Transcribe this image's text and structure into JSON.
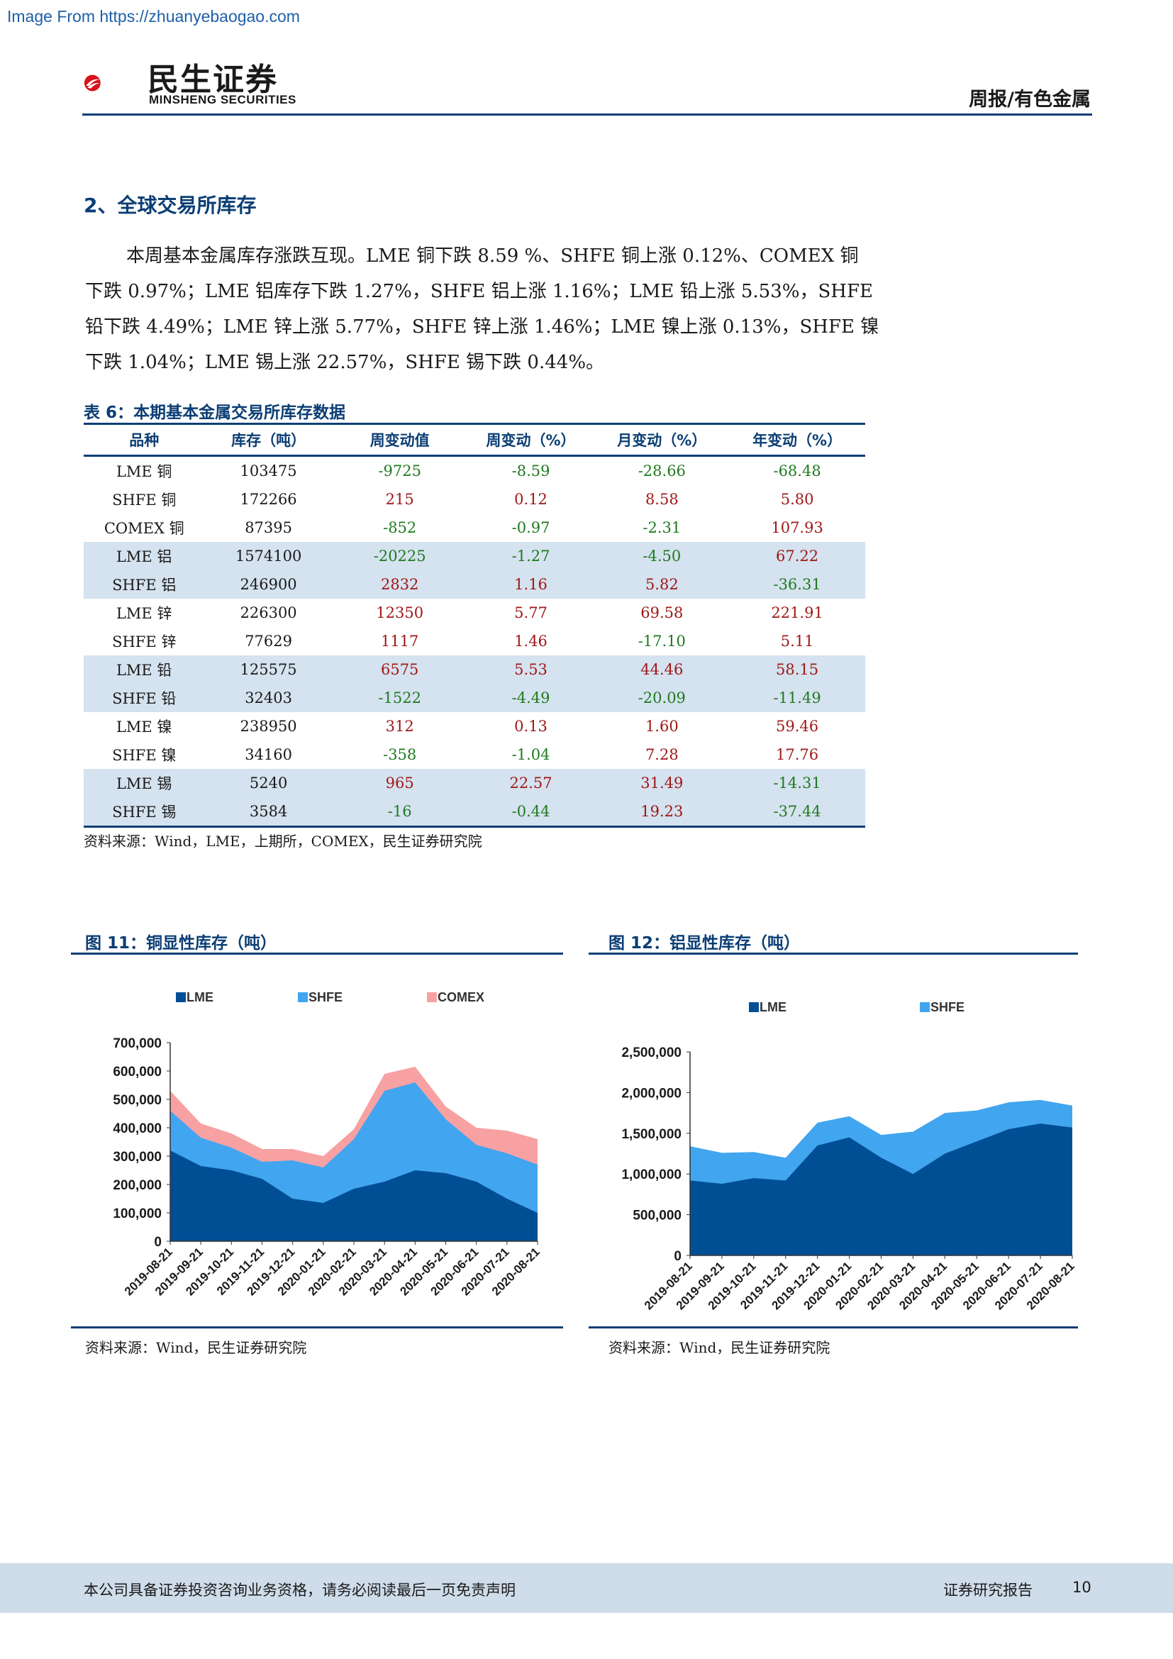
{
  "watermark": "Image From https://zhuanyebaogao.com",
  "header": {
    "logo_cn": "民生证券",
    "logo_en": "MINSHENG SECURITIES",
    "report_type": "周报/有色金属"
  },
  "section": {
    "title": "2、全球交易所库存",
    "paragraph_lines": [
      "本周基本金属库存涨跌互现。LME 铜下跌 8.59 %、SHFE 铜上涨 0.12%、COMEX 铜",
      "下跌 0.97%；LME 铝库存下跌 1.27%，SHFE 铝上涨 1.16%；LME 铅上涨 5.53%，SHFE",
      "铅下跌 4.49%；LME 锌上涨 5.77%，SHFE 锌上涨 1.46%；LME 镍上涨 0.13%，SHFE 镍",
      "下跌 1.04%；LME 锡上涨 22.57%，SHFE 锡下跌 0.44%。"
    ]
  },
  "table": {
    "title": "表 6：本期基本金属交易所库存数据",
    "headers": [
      "品种",
      "库存（吨）",
      "周变动值",
      "周变动（%）",
      "月变动（%）",
      "年变动（%）"
    ],
    "rows": [
      {
        "name": "LME 铜",
        "stock": "103475",
        "wchg": "-9725",
        "wpct": "-8.59",
        "mpct": "-28.66",
        "ypct": "-68.48",
        "shade": false
      },
      {
        "name": "SHFE 铜",
        "stock": "172266",
        "wchg": "215",
        "wpct": "0.12",
        "mpct": "8.58",
        "ypct": "5.80",
        "shade": false
      },
      {
        "name": "COMEX 铜",
        "stock": "87395",
        "wchg": "-852",
        "wpct": "-0.97",
        "mpct": "-2.31",
        "ypct": "107.93",
        "shade": false
      },
      {
        "name": "LME 铝",
        "stock": "1574100",
        "wchg": "-20225",
        "wpct": "-1.27",
        "mpct": "-4.50",
        "ypct": "67.22",
        "shade": true
      },
      {
        "name": "SHFE 铝",
        "stock": "246900",
        "wchg": "2832",
        "wpct": "1.16",
        "mpct": "5.82",
        "ypct": "-36.31",
        "shade": true
      },
      {
        "name": "LME 锌",
        "stock": "226300",
        "wchg": "12350",
        "wpct": "5.77",
        "mpct": "69.58",
        "ypct": "221.91",
        "shade": false
      },
      {
        "name": "SHFE 锌",
        "stock": "77629",
        "wchg": "1117",
        "wpct": "1.46",
        "mpct": "-17.10",
        "ypct": "5.11",
        "shade": false
      },
      {
        "name": "LME 铅",
        "stock": "125575",
        "wchg": "6575",
        "wpct": "5.53",
        "mpct": "44.46",
        "ypct": "58.15",
        "shade": true
      },
      {
        "name": "SHFE 铅",
        "stock": "32403",
        "wchg": "-1522",
        "wpct": "-4.49",
        "mpct": "-20.09",
        "ypct": "-11.49",
        "shade": true
      },
      {
        "name": "LME 镍",
        "stock": "238950",
        "wchg": "312",
        "wpct": "0.13",
        "mpct": "1.60",
        "ypct": "59.46",
        "shade": false
      },
      {
        "name": "SHFE 镍",
        "stock": "34160",
        "wchg": "-358",
        "wpct": "-1.04",
        "mpct": "7.28",
        "ypct": "17.76",
        "shade": false
      },
      {
        "name": "LME 锡",
        "stock": "5240",
        "wchg": "965",
        "wpct": "22.57",
        "mpct": "31.49",
        "ypct": "-14.31",
        "shade": true
      },
      {
        "name": "SHFE 锡",
        "stock": "3584",
        "wchg": "-16",
        "wpct": "-0.44",
        "mpct": "19.23",
        "ypct": "-37.44",
        "shade": true
      }
    ],
    "source": "资料来源：Wind，LME，上期所，COMEX，民生证券研究院"
  },
  "figures": {
    "fig11_title": "图 11：铜显性库存（吨）",
    "fig12_title": "图 12：铝显性库存（吨）",
    "fig11_source": "资料来源：Wind，民生证券研究院",
    "fig12_source": "资料来源：Wind，民生证券研究院"
  },
  "colors": {
    "navy": "#0b3e74",
    "lme": "#004f95",
    "shfe": "#42a5ef",
    "comex": "#f8a1a3"
  },
  "chart_data": [
    {
      "type": "area",
      "stacked": true,
      "x": [
        "2019-08-21",
        "2019-09-21",
        "2019-10-21",
        "2019-11-21",
        "2019-12-21",
        "2020-01-21",
        "2020-02-21",
        "2020-03-21",
        "2020-04-21",
        "2020-05-21",
        "2020-06-21",
        "2020-07-21",
        "2020-08-21"
      ],
      "ylim": [
        0,
        700000
      ],
      "yticks": [
        "0",
        "100,000",
        "200,000",
        "300,000",
        "400,000",
        "500,000",
        "600,000",
        "700,000"
      ],
      "legend_position": "top",
      "series": [
        {
          "name": "LME",
          "values": [
            320000,
            265000,
            250000,
            220000,
            150000,
            135000,
            185000,
            210000,
            250000,
            240000,
            210000,
            150000,
            100000
          ]
        },
        {
          "name": "SHFE",
          "values": [
            140000,
            100000,
            80000,
            60000,
            135000,
            125000,
            175000,
            320000,
            310000,
            190000,
            130000,
            160000,
            170000
          ]
        },
        {
          "name": "COMEX",
          "values": [
            70000,
            50000,
            50000,
            45000,
            40000,
            40000,
            35000,
            60000,
            55000,
            45000,
            60000,
            80000,
            90000
          ]
        }
      ]
    },
    {
      "type": "area",
      "stacked": true,
      "x": [
        "2019-08-21",
        "2019-09-21",
        "2019-10-21",
        "2019-11-21",
        "2019-12-21",
        "2020-01-21",
        "2020-02-21",
        "2020-03-21",
        "2020-04-21",
        "2020-05-21",
        "2020-06-21",
        "2020-07-21",
        "2020-08-21"
      ],
      "ylim": [
        0,
        2500000
      ],
      "yticks": [
        "0",
        "500,000",
        "1,000,000",
        "1,500,000",
        "2,000,000",
        "2,500,000"
      ],
      "legend_position": "top",
      "series": [
        {
          "name": "LME",
          "values": [
            920000,
            880000,
            950000,
            920000,
            1350000,
            1450000,
            1200000,
            1000000,
            1250000,
            1400000,
            1550000,
            1620000,
            1570000
          ]
        },
        {
          "name": "SHFE",
          "values": [
            420000,
            380000,
            320000,
            280000,
            280000,
            260000,
            280000,
            520000,
            500000,
            380000,
            330000,
            290000,
            270000
          ]
        }
      ]
    }
  ]
}
